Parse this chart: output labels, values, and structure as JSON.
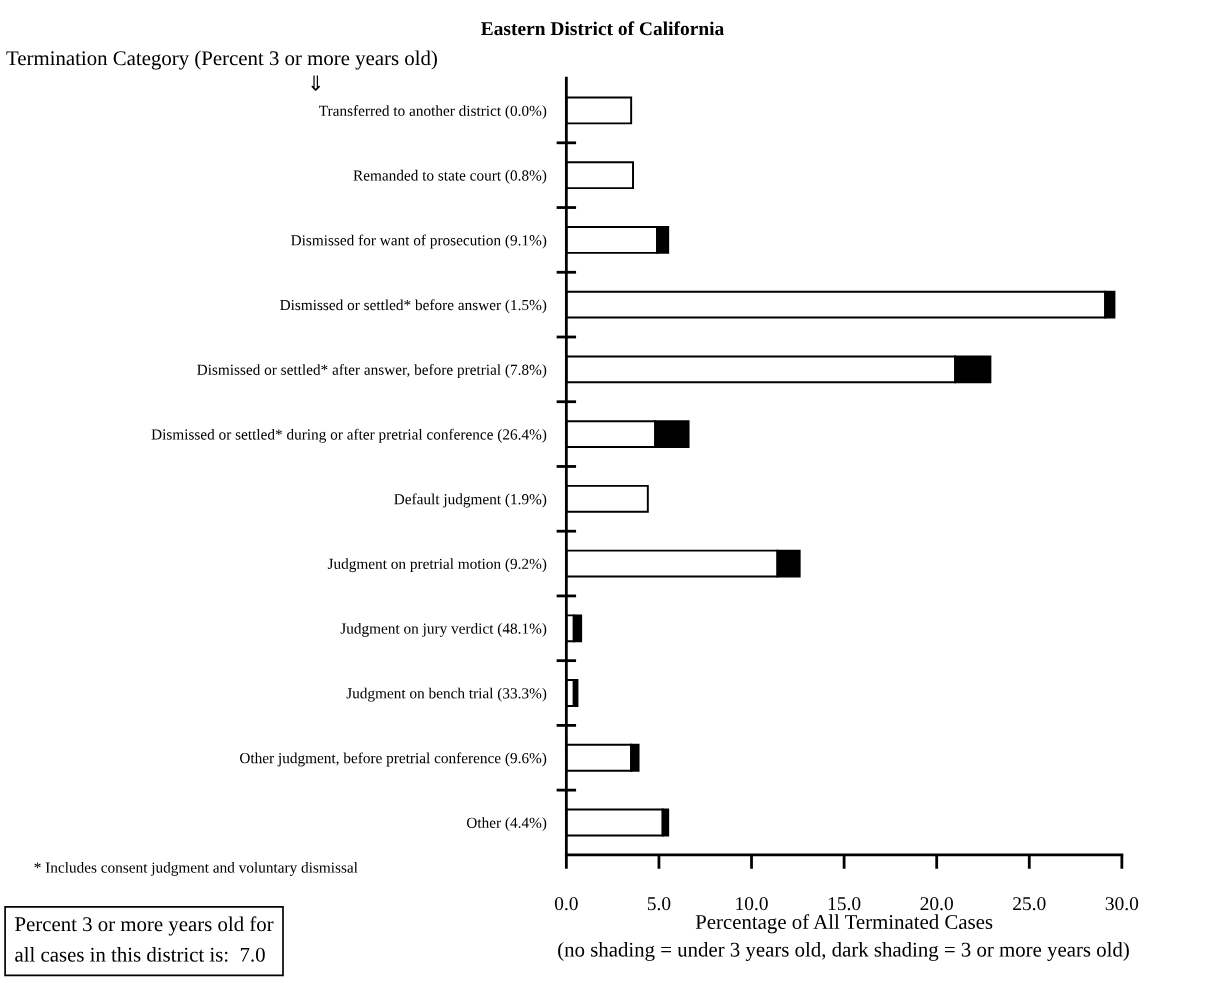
{
  "chart_data": {
    "type": "bar",
    "orientation": "horizontal",
    "stacked": true,
    "title": "Eastern District of California",
    "ylabel": "Termination Category (Percent 3 or more years old)",
    "xlabel": "Percentage of All Terminated Cases",
    "categories": [
      "Transferred to another district (0.0%)",
      "Remanded to state court (0.8%)",
      "Dismissed for want of prosecution (9.1%)",
      "Dismissed or settled* before answer (1.5%)",
      "Dismissed or settled* after answer, before pretrial (7.8%)",
      "Dismissed or settled* during or after pretrial conference (26.4%)",
      "Default judgment (1.9%)",
      "Judgment on pretrial motion (9.2%)",
      "Judgment on jury verdict (48.1%)",
      "Judgment on bench trial (33.3%)",
      "Other judgment, before pretrial conference (9.6%)",
      "Other (4.4%)"
    ],
    "series": [
      {
        "color": "#ffffff",
        "values": [
          3.5,
          3.6,
          4.9,
          29.1,
          21.0,
          4.8,
          4.4,
          11.4,
          0.4,
          0.4,
          3.5,
          5.2
        ]
      },
      {
        "color": "#000000",
        "values": [
          0,
          0,
          0.6,
          0.5,
          1.9,
          1.8,
          0,
          1.2,
          0.4,
          0.2,
          0.4,
          0.3
        ]
      }
    ],
    "xlim": [
      0,
      30
    ],
    "xticks": [
      {
        "value": 0,
        "label": "0.0"
      },
      {
        "value": 5,
        "label": "5.0"
      },
      {
        "value": 10,
        "label": "10.0"
      },
      {
        "value": 15,
        "label": "15.0"
      },
      {
        "value": 20,
        "label": "20.0"
      },
      {
        "value": 25,
        "label": "25.0"
      },
      {
        "value": 30,
        "label": "30.0"
      }
    ],
    "grid": false,
    "legend": false,
    "annotations": [
      "(no shading = under 3 years old, dark shading = 3 or more years old)",
      "* Includes consent judgment and voluntary dismissal",
      "Percent 3 or more years old for\nall cases in this district is:  7.0",
      "⇓"
    ]
  }
}
